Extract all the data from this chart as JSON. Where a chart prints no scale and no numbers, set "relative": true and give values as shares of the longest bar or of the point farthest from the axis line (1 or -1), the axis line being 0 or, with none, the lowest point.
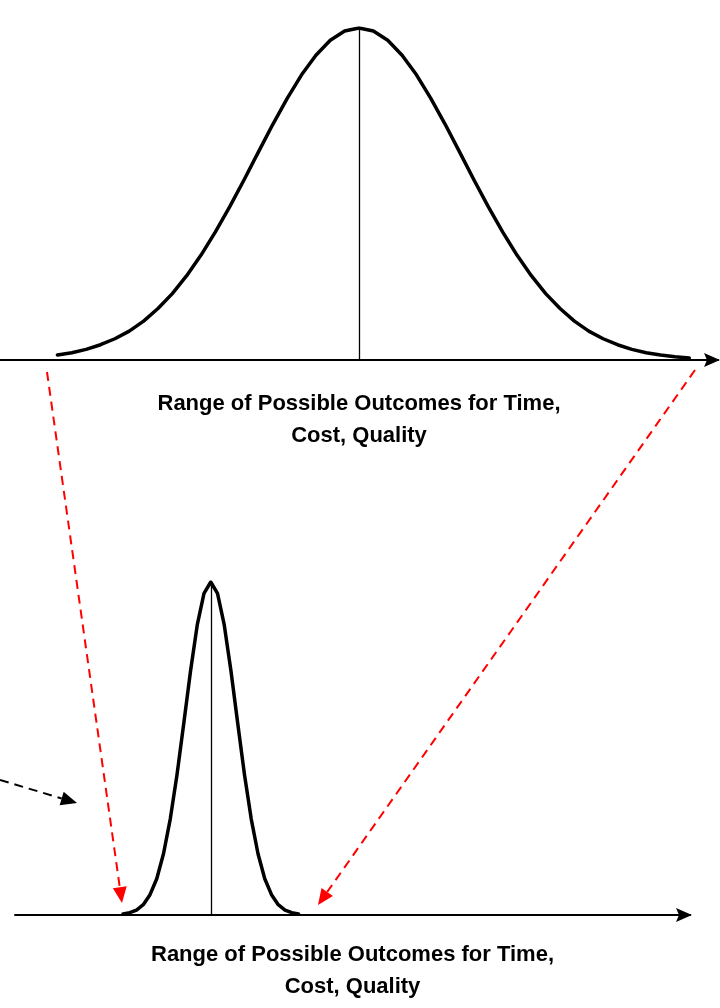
{
  "chart_data": [
    {
      "type": "line",
      "relative": true,
      "xlabel": "Range of Possible Outcomes for Time, Cost, Quality",
      "tick_labels": false,
      "grid": false,
      "marker": "none",
      "line_style": "solid",
      "categories": [
        null,
        null,
        null,
        null,
        null,
        null,
        null,
        null,
        null,
        null,
        null,
        null,
        null,
        null,
        null,
        null,
        null,
        null,
        null,
        null,
        null,
        null,
        null,
        null,
        null,
        null,
        null,
        null,
        null,
        null,
        null,
        null,
        null,
        null,
        null,
        null,
        null,
        null,
        null,
        null,
        null,
        null,
        null,
        null,
        null,
        null,
        null,
        null,
        null,
        null,
        null
      ],
      "series": [
        {
          "color": "#000000",
          "values": [
            null,
            null,
            null,
            null,
            0.015,
            0.022,
            0.032,
            0.046,
            0.064,
            0.087,
            0.117,
            0.155,
            0.2,
            0.254,
            0.316,
            0.386,
            0.462,
            0.543,
            0.627,
            0.71,
            0.788,
            0.859,
            0.918,
            0.963,
            0.991,
            1,
            0.991,
            0.963,
            0.918,
            0.859,
            0.788,
            0.71,
            0.627,
            0.543,
            0.462,
            0.386,
            0.316,
            0.254,
            0.2,
            0.155,
            0.117,
            0.087,
            0.064,
            0.046,
            0.032,
            0.022,
            0.015,
            0.01,
            0.006,
            null,
            null
          ]
        }
      ],
      "ref_lines": [
        {
          "axis": "x",
          "color": "#000000"
        }
      ]
    },
    {
      "type": "line",
      "relative": true,
      "xlabel": "Range of Possible Outcomes for Time, Cost, Quality",
      "tick_labels": false,
      "grid": false,
      "marker": "none",
      "line_style": "solid",
      "categories": [
        null,
        null,
        null,
        null,
        null,
        null,
        null,
        null,
        null,
        null,
        null,
        null,
        null,
        null,
        null,
        null,
        null,
        null,
        null,
        null,
        null,
        null,
        null,
        null,
        null,
        null,
        null,
        null,
        null,
        null,
        null,
        null,
        null,
        null,
        null,
        null,
        null,
        null,
        null,
        null,
        null,
        null,
        null,
        null,
        null,
        null,
        null,
        null,
        null,
        null,
        null,
        null,
        null,
        null,
        null,
        null,
        null,
        null,
        null,
        null,
        null,
        null,
        null,
        null,
        null,
        null,
        null,
        null,
        null,
        null,
        null,
        null,
        null,
        null,
        null,
        null,
        null,
        null,
        null,
        null,
        null,
        null,
        null,
        null,
        null,
        null,
        null,
        null,
        null,
        null,
        null,
        null,
        null,
        null,
        null,
        null,
        null,
        null,
        null,
        null,
        null
      ],
      "series": [
        {
          "color": "#000000",
          "values": [
            null,
            null,
            null,
            null,
            null,
            null,
            null,
            null,
            null,
            null,
            null,
            null,
            null,
            null,
            null,
            null,
            0.003,
            0.007,
            0.015,
            0.031,
            0.061,
            0.109,
            0.184,
            0.288,
            0.421,
            0.575,
            0.732,
            0.871,
            0.966,
            1,
            0.966,
            0.871,
            0.732,
            0.575,
            0.421,
            0.288,
            0.184,
            0.109,
            0.061,
            0.031,
            0.015,
            0.007,
            0.003,
            null,
            null,
            null,
            null,
            null,
            null,
            null,
            null,
            null,
            null,
            null,
            null,
            null,
            null,
            null,
            null,
            null,
            null,
            null,
            null,
            null,
            null,
            null,
            null,
            null,
            null,
            null,
            null,
            null,
            null,
            null,
            null,
            null,
            null,
            null,
            null,
            null,
            null,
            null,
            null,
            null,
            null,
            null,
            null,
            null,
            null,
            null,
            null,
            null,
            null,
            null,
            null,
            null,
            null,
            null,
            null,
            null,
            null
          ]
        }
      ],
      "ref_lines": [
        {
          "axis": "x",
          "color": "#000000"
        }
      ]
    }
  ]
}
